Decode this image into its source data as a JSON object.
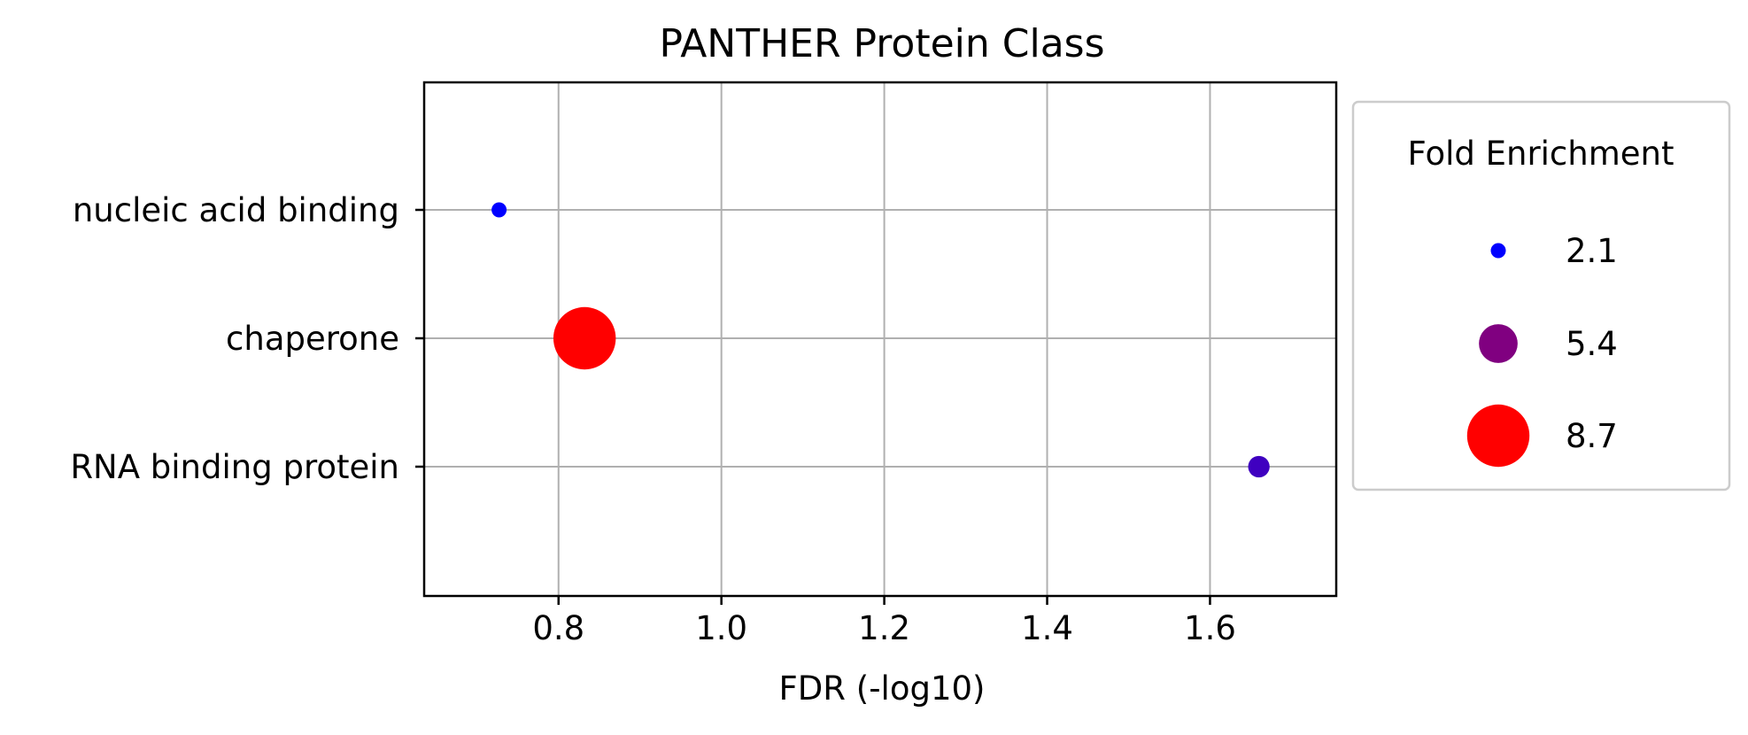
{
  "chart_data": {
    "type": "scatter",
    "title": "PANTHER Protein Class",
    "xlabel": "FDR (-log10)",
    "ylabel": "",
    "xlim": [
      0.635,
      1.755
    ],
    "xticks": [
      0.8,
      1.0,
      1.2,
      1.4,
      1.6
    ],
    "xtick_labels": [
      "0.8",
      "1.0",
      "1.2",
      "1.4",
      "1.6"
    ],
    "categories": [
      "nucleic acid binding",
      "chaperone",
      "RNA binding protein"
    ],
    "grid": true,
    "points": [
      {
        "category": "nucleic acid binding",
        "x": 0.727,
        "fold_enrichment": 2.1,
        "color": "#0000ff"
      },
      {
        "category": "chaperone",
        "x": 0.832,
        "fold_enrichment": 8.7,
        "color": "#ff0000"
      },
      {
        "category": "RNA binding protein",
        "x": 1.66,
        "fold_enrichment": 3.0,
        "color": "#3f00c0"
      }
    ],
    "legend": {
      "title": "Fold Enrichment",
      "placement": "outside-right",
      "entries": [
        {
          "label": "2.1",
          "value": 2.1,
          "color": "#0000ff"
        },
        {
          "label": "5.4",
          "value": 5.4,
          "color": "#800080"
        },
        {
          "label": "8.7",
          "value": 8.7,
          "color": "#ff0000"
        }
      ]
    }
  }
}
